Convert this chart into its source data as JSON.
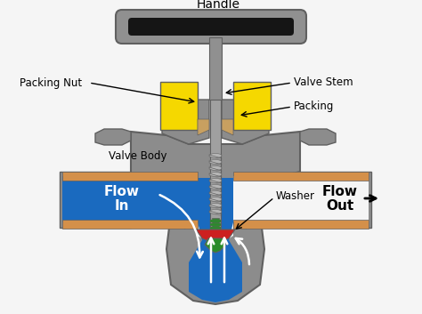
{
  "background": "#f5f5f5",
  "colors": {
    "gray": "#909090",
    "gray_dark": "#606060",
    "gray_light": "#b8b8b8",
    "gray_body": "#8c8c8c",
    "yellow": "#f5d800",
    "blue": "#1a6abf",
    "blue_dark": "#1555a0",
    "orange": "#d4904a",
    "black": "#151515",
    "white": "#ffffff",
    "green": "#2a8c2a",
    "red": "#cc2020",
    "tan": "#c8a060",
    "stem_gray": "#a0a0a0"
  },
  "labels": {
    "handle": "Handle",
    "valve_stem": "Valve Stem",
    "packing_nut": "Packing Nut",
    "packing": "Packing",
    "valve_body": "Valve Body",
    "washer": "Washer",
    "flow_in_1": "Flow",
    "flow_in_2": "In",
    "flow_out_1": "Flow",
    "flow_out_2": "Out"
  }
}
